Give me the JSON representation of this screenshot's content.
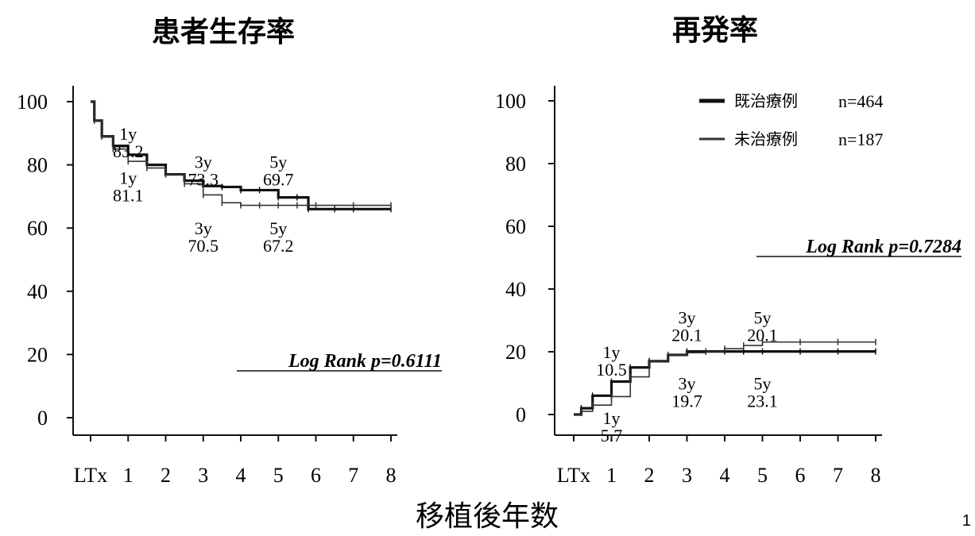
{
  "x_label": "移植後年数",
  "page_number": "1",
  "legend": [
    {
      "label": "既治療例",
      "n": "n=464",
      "color": "#111111"
    },
    {
      "label": "未治療例",
      "n": "n=187",
      "color": "#333333"
    }
  ],
  "chart_data": [
    {
      "type": "line",
      "title": "患者生存率",
      "x_tick_labels": [
        "LTx",
        "1",
        "2",
        "3",
        "4",
        "5",
        "6",
        "7",
        "8"
      ],
      "x_ticks": [
        0,
        1,
        2,
        3,
        4,
        5,
        6,
        7,
        8
      ],
      "y_ticks": [
        0,
        20,
        40,
        60,
        80,
        100
      ],
      "xlim": [
        0,
        8
      ],
      "ylim": [
        0,
        100
      ],
      "p_value": "Log Rank p=0.6111",
      "series": [
        {
          "name": "既治療例",
          "x": [
            0,
            0.1,
            0.3,
            0.6,
            1,
            1.5,
            2,
            2.5,
            3,
            3.5,
            4,
            4.5,
            5,
            5.5,
            5.8,
            6.5,
            7,
            8
          ],
          "y": [
            100,
            94,
            89,
            86,
            83.2,
            80,
            77,
            75,
            73.3,
            73,
            72,
            72,
            69.7,
            69.7,
            66,
            66,
            66,
            66
          ]
        },
        {
          "name": "未治療例",
          "x": [
            0,
            0.1,
            0.3,
            0.6,
            1,
            1.5,
            2,
            2.5,
            3,
            3.5,
            4,
            4.5,
            5,
            5.5,
            6,
            7,
            8
          ],
          "y": [
            100,
            94,
            89,
            85,
            81.1,
            79,
            77,
            74,
            70.5,
            68,
            67.2,
            67.2,
            67.2,
            67.2,
            67.2,
            67.2,
            67.2
          ]
        }
      ],
      "annotations": [
        {
          "year": "1y",
          "value": "83.2",
          "x": 1,
          "y": 88
        },
        {
          "year": "3y",
          "value": "73.3",
          "x": 3,
          "y": 79
        },
        {
          "year": "5y",
          "value": "69.7",
          "x": 5,
          "y": 79
        },
        {
          "year": "1y",
          "value": "81.1",
          "x": 1,
          "y": 74
        },
        {
          "year": "3y",
          "value": "70.5",
          "x": 3,
          "y": 58
        },
        {
          "year": "5y",
          "value": "67.2",
          "x": 5,
          "y": 58
        }
      ]
    },
    {
      "type": "line",
      "title": "再発率",
      "x_tick_labels": [
        "LTx",
        "1",
        "2",
        "3",
        "4",
        "5",
        "6",
        "7",
        "8"
      ],
      "x_ticks": [
        0,
        1,
        2,
        3,
        4,
        5,
        6,
        7,
        8
      ],
      "y_ticks": [
        0,
        20,
        40,
        60,
        80,
        100
      ],
      "xlim": [
        0,
        8
      ],
      "ylim": [
        0,
        100
      ],
      "p_value": "Log Rank p=0.7284",
      "series": [
        {
          "name": "既治療例",
          "x": [
            0,
            0.2,
            0.5,
            1,
            1.5,
            2,
            2.5,
            3,
            3.5,
            4,
            4.5,
            5,
            6,
            7,
            8
          ],
          "y": [
            0,
            2,
            6,
            10.5,
            15,
            17,
            19,
            20.1,
            20.1,
            20.1,
            20.1,
            20.1,
            20.1,
            20.1,
            20.1
          ]
        },
        {
          "name": "未治療例",
          "x": [
            0,
            0.2,
            0.5,
            1,
            1.5,
            2,
            2.5,
            3,
            3.5,
            4,
            4.5,
            5,
            6,
            7,
            8
          ],
          "y": [
            0,
            1,
            3,
            5.7,
            12,
            17,
            19,
            19.7,
            20,
            21,
            22,
            23.1,
            23.1,
            23.1,
            23.1
          ]
        }
      ],
      "annotations": [
        {
          "year": "1y",
          "value": "10.5",
          "x": 1,
          "y": 18
        },
        {
          "year": "3y",
          "value": "20.1",
          "x": 3,
          "y": 29
        },
        {
          "year": "5y",
          "value": "20.1",
          "x": 5,
          "y": 29
        },
        {
          "year": "3y",
          "value": "19.7",
          "x": 3,
          "y": 8
        },
        {
          "year": "5y",
          "value": "23.1",
          "x": 5,
          "y": 8
        },
        {
          "year": "1y",
          "value": "5.7",
          "x": 1,
          "y": -3
        }
      ]
    }
  ]
}
